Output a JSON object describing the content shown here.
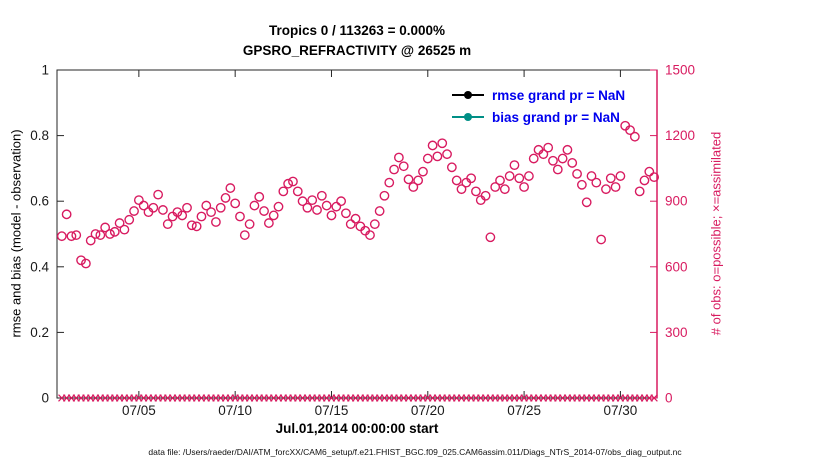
{
  "colors": {
    "obs_pink": "#d81b60",
    "legend_text_blue": "#0000ee",
    "rmse_black": "#000000",
    "bias_teal": "#008f86",
    "frame_gray": "#262626",
    "tick_label_black": "#1a1a1a"
  },
  "chart_data": {
    "type": "scatter",
    "title1": "Tropics 0 / 113263 = 0.000%",
    "title2": "GPSRO_REFRACTIVITY @ 26525 m",
    "xlabel": "Jul.01,2014 00:00:00 start",
    "ylabel_left": "rmse and bias (model - observation)",
    "ylabel_right": "# of obs: o=possible; ×=assimilated",
    "caption": "data file: /Users/raeder/DAI/ATM_forcXX/CAM6_setup/f.e21.FHIST_BGC.f09_025.CAM6assim.011/Diags_NTrS_2014-07/obs_diag_output.nc",
    "xlim_days": [
      0.75,
      31.9
    ],
    "ylim_left": [
      0,
      1
    ],
    "ylim_right": [
      0,
      1500
    ],
    "grid": false,
    "legend_position": "top-right-inside",
    "xticks": [
      {
        "day": 5,
        "label": "07/05"
      },
      {
        "day": 10,
        "label": "07/10"
      },
      {
        "day": 15,
        "label": "07/15"
      },
      {
        "day": 20,
        "label": "07/20"
      },
      {
        "day": 25,
        "label": "07/25"
      },
      {
        "day": 30,
        "label": "07/30"
      }
    ],
    "yticks_left": [
      {
        "value": 0,
        "label": "0"
      },
      {
        "value": 0.2,
        "label": "0.2"
      },
      {
        "value": 0.4,
        "label": "0.4"
      },
      {
        "value": 0.6,
        "label": "0.6"
      },
      {
        "value": 0.8,
        "label": "0.8"
      },
      {
        "value": 1,
        "label": "1"
      }
    ],
    "yticks_right": [
      {
        "value": 0,
        "label": "0"
      },
      {
        "value": 300,
        "label": "300"
      },
      {
        "value": 600,
        "label": "600"
      },
      {
        "value": 900,
        "label": "900"
      },
      {
        "value": 1200,
        "label": "1200"
      },
      {
        "value": 1500,
        "label": "1500"
      }
    ],
    "legend": [
      {
        "label": "rmse grand pr = NaN",
        "marker_color": "#000000"
      },
      {
        "label": "bias grand pr = NaN",
        "marker_color": "#008f86"
      }
    ],
    "series": [
      {
        "name": "possible-obs",
        "marker": "o",
        "axis": "right",
        "x_start_day": 1,
        "x_step_day": 0.25,
        "values": [
          740,
          840,
          740,
          745,
          630,
          615,
          720,
          750,
          745,
          780,
          750,
          760,
          800,
          770,
          815,
          855,
          905,
          880,
          850,
          870,
          930,
          860,
          795,
          830,
          850,
          835,
          870,
          790,
          785,
          830,
          880,
          850,
          805,
          870,
          915,
          960,
          890,
          830,
          745,
          795,
          880,
          920,
          855,
          800,
          835,
          875,
          945,
          980,
          990,
          945,
          900,
          870,
          905,
          860,
          925,
          880,
          835,
          875,
          900,
          845,
          795,
          820,
          785,
          765,
          745,
          795,
          855,
          925,
          985,
          1045,
          1100,
          1060,
          1000,
          965,
          995,
          1035,
          1095,
          1155,
          1105,
          1165,
          1115,
          1055,
          995,
          955,
          985,
          1005,
          945,
          905,
          925,
          735,
          965,
          995,
          955,
          1015,
          1065,
          1005,
          965,
          1015,
          1095,
          1135,
          1115,
          1145,
          1085,
          1045,
          1095,
          1135,
          1075,
          1025,
          975,
          895,
          1015,
          985,
          725,
          955,
          1005,
          965,
          1015,
          1245,
          1225,
          1195,
          945,
          995,
          1035,
          1010
        ]
      },
      {
        "name": "assimilated-obs",
        "marker": "x",
        "axis": "right",
        "x_start_day": 1,
        "x_step_day": 0.25,
        "value_constant": 0,
        "count": 124
      }
    ]
  }
}
